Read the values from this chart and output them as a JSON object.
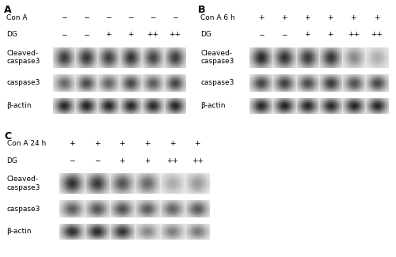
{
  "panels": {
    "A": {
      "label": "A",
      "row1_label": "Con A",
      "row1_values": [
        "−",
        "−",
        "−",
        "−",
        "−",
        "−"
      ],
      "row2_label": "DG",
      "row2_values": [
        "−",
        "−",
        "+",
        "+",
        "++",
        "++"
      ],
      "bands": {
        "Cleaved-\ncaspase3": [
          0.8,
          0.82,
          0.78,
          0.83,
          0.76,
          0.79
        ],
        "caspase3": [
          0.6,
          0.72,
          0.62,
          0.74,
          0.65,
          0.75
        ],
        "b-actin": [
          0.88,
          0.9,
          0.89,
          0.88,
          0.87,
          0.89
        ]
      },
      "band_labels": [
        "Cleaved-\ncaspase3",
        "caspase3",
        "β-actin"
      ]
    },
    "B": {
      "label": "B",
      "row1_label": "Con A 6 h",
      "row1_values": [
        "+",
        "+",
        "+",
        "+",
        "+",
        "+"
      ],
      "row2_label": "DG",
      "row2_values": [
        "−",
        "−",
        "+",
        "+",
        "++",
        "++"
      ],
      "bands": {
        "Cleaved-\ncaspase3": [
          0.88,
          0.84,
          0.8,
          0.82,
          0.45,
          0.28
        ],
        "caspase3": [
          0.75,
          0.78,
          0.72,
          0.8,
          0.7,
          0.74
        ],
        "b-actin": [
          0.88,
          0.9,
          0.88,
          0.87,
          0.89,
          0.88
        ]
      },
      "band_labels": [
        "Cleaved-\ncaspase3",
        "caspase3",
        "β-actin"
      ]
    },
    "C": {
      "label": "C",
      "row1_label": "Con A 24 h",
      "row1_values": [
        "+",
        "+",
        "+",
        "+",
        "+",
        "+"
      ],
      "row2_label": "DG",
      "row2_values": [
        "−",
        "−",
        "+",
        "+",
        "++",
        "++"
      ],
      "bands": {
        "Cleaved-\ncaspase3": [
          0.85,
          0.8,
          0.68,
          0.6,
          0.3,
          0.38
        ],
        "caspase3": [
          0.65,
          0.68,
          0.7,
          0.65,
          0.62,
          0.66
        ],
        "b-actin": [
          0.85,
          0.87,
          0.83,
          0.45,
          0.5,
          0.52
        ]
      },
      "band_labels": [
        "Cleaved-\ncaspase3",
        "caspase3",
        "β-actin"
      ]
    }
  },
  "text_color": "#000000",
  "label_fontsize": 6.5,
  "sign_fontsize": 6.5,
  "panel_label_fontsize": 9
}
